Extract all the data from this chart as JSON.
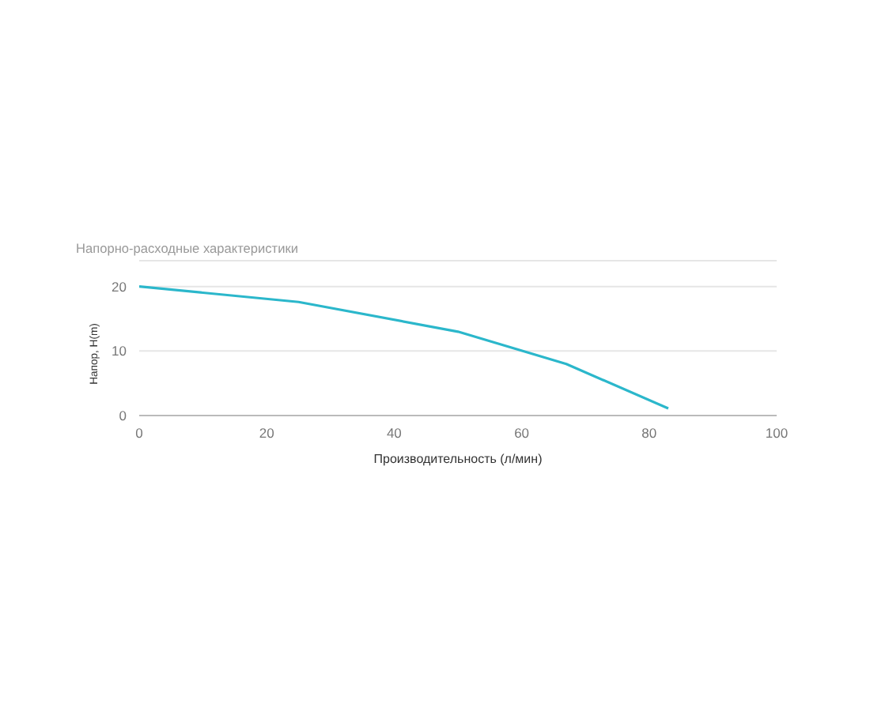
{
  "chart_data": {
    "type": "line",
    "title": "Напорно-расходные характеристики",
    "xlabel": "Производительность (л/мин)",
    "ylabel": "Напор, H(m)",
    "x": [
      0,
      25,
      50,
      67,
      83
    ],
    "series": [
      {
        "color": "#2bb7cb",
        "values": [
          20,
          17.6,
          13,
          8,
          1.1
        ]
      }
    ],
    "xlim": [
      0,
      100
    ],
    "xticks": [
      0,
      20,
      40,
      60,
      80,
      100
    ],
    "ylim": [
      0,
      24
    ],
    "yticks": [
      0,
      10,
      20,
      {
        "value": 24,
        "label": null
      }
    ],
    "grid": "y",
    "legend": false,
    "marker": "none",
    "line_style": "solid"
  }
}
